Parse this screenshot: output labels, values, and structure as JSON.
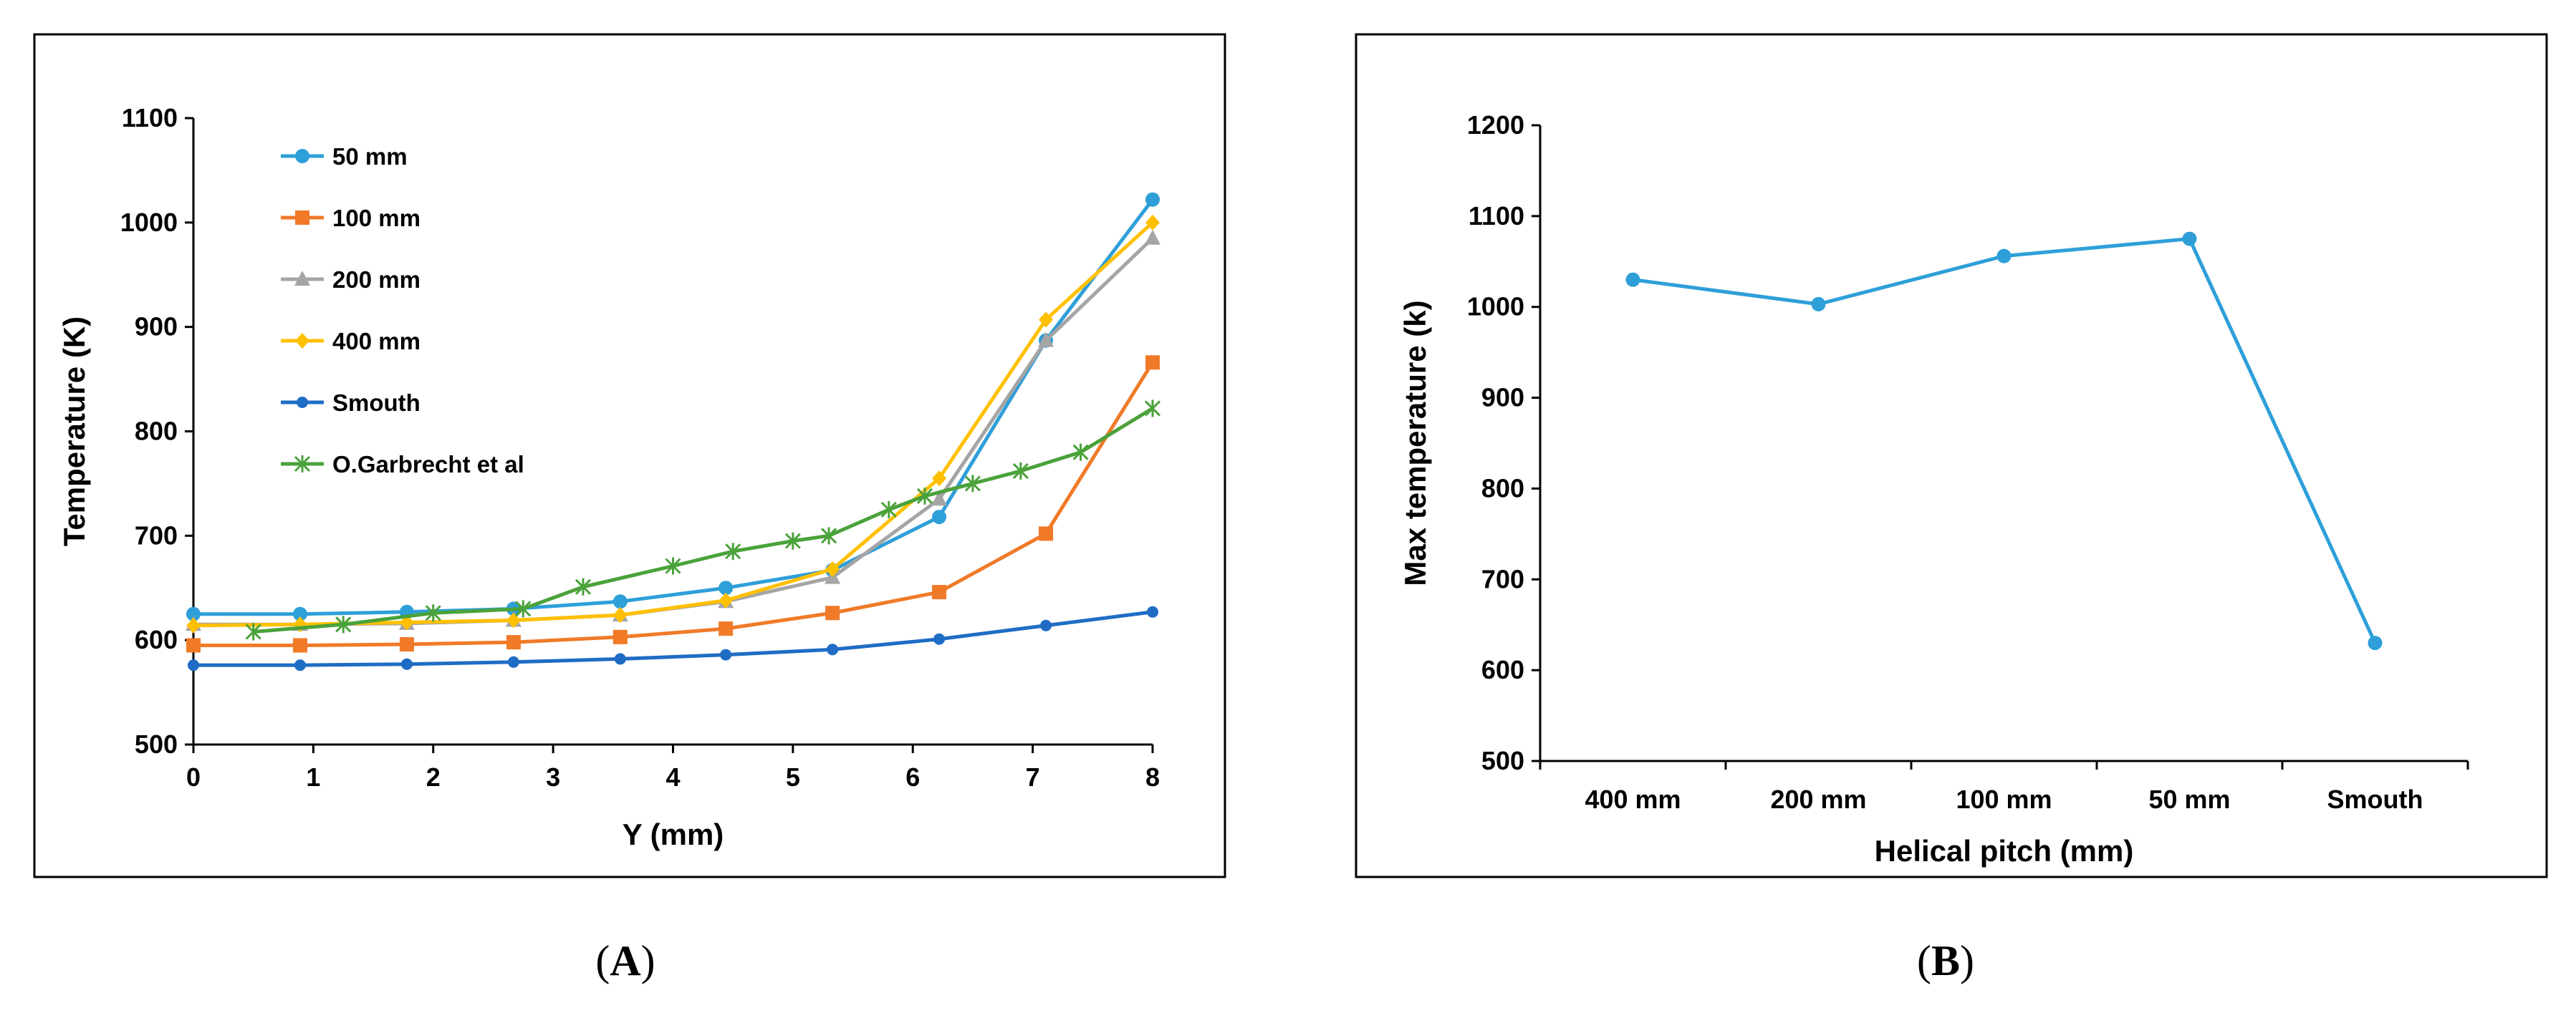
{
  "chart_data": [
    {
      "panel": "A",
      "type": "line",
      "xlabel": "Y (mm)",
      "ylabel": "Temperature (K)",
      "xlim": [
        0,
        8
      ],
      "ylim": [
        500,
        1100
      ],
      "xticks": [
        0,
        1,
        2,
        3,
        4,
        5,
        6,
        7,
        8
      ],
      "yticks": [
        500,
        600,
        700,
        800,
        900,
        1000,
        1100
      ],
      "grid": false,
      "legend_position": "top-left",
      "series": [
        {
          "name": "50 mm",
          "color": "#2E9FD9",
          "marker": "circle",
          "x": [
            0,
            0.89,
            1.78,
            2.67,
            3.56,
            4.44,
            5.33,
            6.22,
            7.11,
            8
          ],
          "y": [
            625,
            625,
            627,
            630,
            637,
            650,
            667,
            718,
            887,
            1022
          ]
        },
        {
          "name": "100 mm",
          "color": "#F07A28",
          "marker": "square",
          "x": [
            0,
            0.89,
            1.78,
            2.67,
            3.56,
            4.44,
            5.33,
            6.22,
            7.11,
            8
          ],
          "y": [
            595,
            595,
            596,
            598,
            603,
            611,
            626,
            646,
            702,
            866
          ]
        },
        {
          "name": "200 mm",
          "color": "#A5A5A5",
          "marker": "triangle",
          "x": [
            0,
            0.89,
            1.78,
            2.67,
            3.56,
            4.44,
            5.33,
            6.22,
            7.11,
            8
          ],
          "y": [
            615,
            615,
            616,
            619,
            624,
            637,
            660,
            735,
            887,
            985
          ]
        },
        {
          "name": "400 mm",
          "color": "#FFC000",
          "marker": "diamond",
          "x": [
            0,
            0.89,
            1.78,
            2.67,
            3.56,
            4.44,
            5.33,
            6.22,
            7.11,
            8
          ],
          "y": [
            614,
            615,
            617,
            619,
            624,
            638,
            668,
            755,
            907,
            1000
          ]
        },
        {
          "name": "Smouth",
          "color": "#1F6CC4",
          "marker": "circle-small",
          "x": [
            0,
            0.89,
            1.78,
            2.67,
            3.56,
            4.44,
            5.33,
            6.22,
            7.11,
            8
          ],
          "y": [
            576,
            576,
            577,
            579,
            582,
            586,
            591,
            601,
            614,
            627
          ]
        },
        {
          "name": "O.Garbrecht et al",
          "color": "#4AA23A",
          "marker": "star",
          "x": [
            0.5,
            1.25,
            2.0,
            2.75,
            3.25,
            4.0,
            4.5,
            5.0,
            5.3,
            5.8,
            6.1,
            6.5,
            6.9,
            7.4,
            8.0
          ],
          "y": [
            608,
            615,
            626,
            630,
            651,
            671,
            685,
            695,
            700,
            725,
            738,
            750,
            762,
            780,
            822
          ]
        }
      ]
    },
    {
      "panel": "B",
      "type": "line",
      "xlabel": "Helical pitch (mm)",
      "ylabel": "Max temperature  (k)",
      "categories": [
        "400 mm",
        "200 mm",
        "100 mm",
        "50 mm",
        "Smouth"
      ],
      "values": [
        1030,
        1003,
        1056,
        1075,
        630
      ],
      "ylim": [
        500,
        1200
      ],
      "yticks": [
        500,
        600,
        700,
        800,
        900,
        1000,
        1100,
        1200
      ],
      "grid": false,
      "series_color": "#2E9FD9"
    }
  ],
  "captions": {
    "a": "(A)",
    "b": "(B)"
  }
}
